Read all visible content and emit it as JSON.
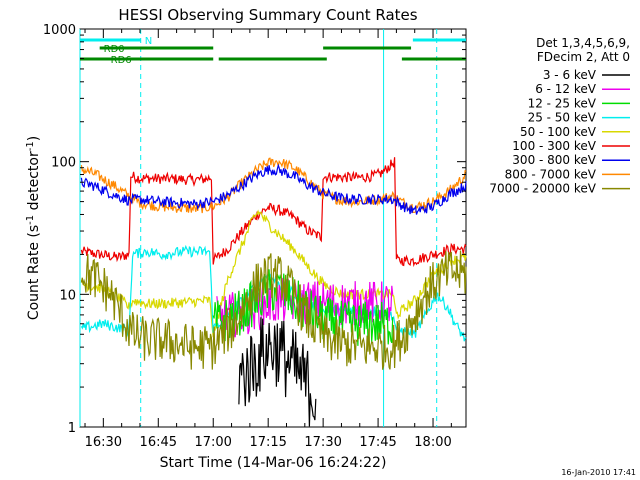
{
  "chart_data": {
    "type": "line",
    "title": "HESSI Observing Summary Count Rates",
    "xlabel": "Start Time (14-Mar-06 16:24:22)",
    "ylabel_main": "Count Rate (s",
    "ylabel_sup1": "-1",
    "ylabel_mid": " detector",
    "ylabel_sup2": "-1",
    "ylabel_end": ")",
    "yscale": "log",
    "ylim": [
      1,
      1000
    ],
    "xlim_minutes": [
      -6.37,
      99.0
    ],
    "x_tick_labels": [
      "16:30",
      "16:45",
      "17:00",
      "17:15",
      "17:30",
      "17:45",
      "18:00"
    ],
    "x_tick_minutes": [
      0,
      15,
      30,
      45,
      60,
      75,
      90
    ],
    "y_tick_labels": [
      "1",
      "10",
      "100",
      "1000"
    ],
    "y_tick_values": [
      1,
      10,
      100,
      1000
    ],
    "legend_header_1": "Det 1,3,4,5,6,9,",
    "legend_header_2": "FDecim 2, Att 0",
    "legend": [
      {
        "name": "3 - 6 keV",
        "color": "#000000"
      },
      {
        "name": "6 - 12 keV",
        "color": "#ee00ee"
      },
      {
        "name": "12 - 25 keV",
        "color": "#00dd00"
      },
      {
        "name": "25 - 50 keV",
        "color": "#00eeee"
      },
      {
        "name": "50 - 100 keV",
        "color": "#d8d800"
      },
      {
        "name": "100 - 300 keV",
        "color": "#ee0000"
      },
      {
        "name": "300 - 800 keV",
        "color": "#0000ee"
      },
      {
        "name": "800 - 7000 keV",
        "color": "#ff8800"
      },
      {
        "name": "7000 - 20000 keV",
        "color": "#888800"
      }
    ],
    "flags": {
      "saa_label": "N",
      "saa_color": "#00eeee",
      "saa_intervals": [
        [
          -6.37,
          10.2
        ],
        [
          84.5,
          99.0
        ]
      ],
      "rd0_label": "RD0",
      "rd0_intervals": [
        [
          -1.0,
          30.0
        ],
        [
          60.0,
          84.0
        ]
      ],
      "rd6_label": "RD6",
      "rd6_intervals": [
        [
          -6.37,
          30.0
        ],
        [
          31.5,
          61.0
        ],
        [
          81.5,
          99.0
        ]
      ],
      "flag_color": "#008800",
      "saa_solid_lines": [
        -6.37,
        76.5
      ],
      "saa_dashed_lines": [
        10.2,
        91.0
      ]
    },
    "series": [
      {
        "name": "100 - 300 keV",
        "color": "#ee0000",
        "points": [
          [
            -6,
            21
          ],
          [
            4,
            19
          ],
          [
            7,
            20
          ],
          [
            7.5,
            78
          ],
          [
            10,
            75
          ],
          [
            20,
            74
          ],
          [
            24,
            73
          ],
          [
            28,
            74
          ],
          [
            29.5,
            76
          ],
          [
            30,
            18
          ],
          [
            34,
            22
          ],
          [
            38,
            30
          ],
          [
            42,
            40
          ],
          [
            45,
            45
          ],
          [
            48,
            43
          ],
          [
            52,
            38
          ],
          [
            56,
            30
          ],
          [
            59.5,
            27
          ],
          [
            60,
            77
          ],
          [
            70,
            76
          ],
          [
            74,
            78
          ],
          [
            76,
            82
          ],
          [
            79.5,
            100
          ],
          [
            80,
            18
          ],
          [
            85,
            18
          ],
          [
            90,
            20
          ],
          [
            95,
            22
          ],
          [
            99,
            22
          ]
        ]
      },
      {
        "name": "800 - 7000 keV",
        "color": "#ff8800",
        "points": [
          [
            -6,
            88
          ],
          [
            -2,
            80
          ],
          [
            3,
            66
          ],
          [
            7,
            55
          ],
          [
            10,
            49
          ],
          [
            15,
            46
          ],
          [
            20,
            45
          ],
          [
            25,
            44
          ],
          [
            30,
            46
          ],
          [
            34,
            54
          ],
          [
            38,
            70
          ],
          [
            42,
            87
          ],
          [
            45,
            98
          ],
          [
            48,
            100
          ],
          [
            52,
            90
          ],
          [
            56,
            72
          ],
          [
            60,
            57
          ],
          [
            65,
            51
          ],
          [
            70,
            50
          ],
          [
            75,
            52
          ],
          [
            79,
            55
          ],
          [
            82,
            49
          ],
          [
            85,
            45
          ],
          [
            90,
            50
          ],
          [
            95,
            62
          ],
          [
            99,
            80
          ]
        ]
      },
      {
        "name": "300 - 800 keV",
        "color": "#0000ee",
        "points": [
          [
            -6,
            70
          ],
          [
            -2,
            65
          ],
          [
            3,
            56
          ],
          [
            7,
            51
          ],
          [
            10,
            52
          ],
          [
            15,
            50
          ],
          [
            20,
            49
          ],
          [
            25,
            48
          ],
          [
            30,
            50
          ],
          [
            34,
            56
          ],
          [
            38,
            67
          ],
          [
            42,
            80
          ],
          [
            45,
            87
          ],
          [
            48,
            86
          ],
          [
            52,
            78
          ],
          [
            56,
            66
          ],
          [
            60,
            58
          ],
          [
            65,
            53
          ],
          [
            70,
            52
          ],
          [
            75,
            52
          ],
          [
            79,
            52
          ],
          [
            82,
            46
          ],
          [
            85,
            42
          ],
          [
            90,
            46
          ],
          [
            95,
            58
          ],
          [
            99,
            66
          ]
        ]
      },
      {
        "name": "50 - 100 keV",
        "color": "#d8d800",
        "points": [
          [
            -6,
            12
          ],
          [
            0,
            11
          ],
          [
            5,
            9
          ],
          [
            7,
            8
          ],
          [
            8,
            9
          ],
          [
            12,
            8.5
          ],
          [
            16,
            8.5
          ],
          [
            22,
            8.7
          ],
          [
            29,
            9
          ],
          [
            30,
            5
          ],
          [
            34,
            13
          ],
          [
            38,
            24
          ],
          [
            41,
            38
          ],
          [
            42.5,
            42
          ],
          [
            45,
            34
          ],
          [
            48,
            28
          ],
          [
            52,
            22
          ],
          [
            56,
            16
          ],
          [
            60,
            12
          ],
          [
            65,
            10
          ],
          [
            70,
            10
          ],
          [
            76,
            10
          ],
          [
            79,
            10
          ],
          [
            80,
            7
          ],
          [
            85,
            9
          ],
          [
            90,
            14
          ],
          [
            95,
            18
          ],
          [
            99,
            19
          ]
        ]
      },
      {
        "name": "25 - 50 keV",
        "color": "#00eeee",
        "points": [
          [
            -6,
            5.5
          ],
          [
            0,
            6
          ],
          [
            5,
            5.5
          ],
          [
            7,
            5.2
          ],
          [
            8,
            20
          ],
          [
            12,
            21
          ],
          [
            16,
            20
          ],
          [
            22,
            21
          ],
          [
            29,
            21
          ],
          [
            30,
            5.5
          ],
          [
            34,
            7
          ],
          [
            38,
            9
          ],
          [
            42,
            12
          ],
          [
            45,
            14
          ],
          [
            48,
            12
          ],
          [
            52,
            10
          ],
          [
            56,
            8.5
          ],
          [
            60,
            7.5
          ],
          [
            65,
            7.5
          ],
          [
            70,
            7.5
          ],
          [
            76,
            7.5
          ],
          [
            79,
            7
          ],
          [
            80,
            5.5
          ],
          [
            85,
            5
          ],
          [
            88,
            7
          ],
          [
            91,
            10
          ],
          [
            94,
            8
          ],
          [
            96,
            6
          ],
          [
            99,
            4.5
          ]
        ]
      },
      {
        "name": "6 - 12 keV",
        "color": "#ee00ee",
        "points": [
          [
            31,
            6.5
          ],
          [
            35,
            7
          ],
          [
            40,
            7.5
          ],
          [
            45,
            8.5
          ],
          [
            50,
            9
          ],
          [
            55,
            8.7
          ],
          [
            60,
            8.6
          ],
          [
            65,
            8.5
          ],
          [
            70,
            8.5
          ],
          [
            75,
            8.5
          ],
          [
            79,
            8.5
          ]
        ]
      },
      {
        "name": "12 - 25 keV",
        "color": "#00dd00",
        "points": [
          [
            30,
            6
          ],
          [
            34,
            6.5
          ],
          [
            38,
            7.5
          ],
          [
            42,
            9
          ],
          [
            45,
            10.5
          ],
          [
            48,
            11
          ],
          [
            52,
            9
          ],
          [
            56,
            7.5
          ],
          [
            60,
            6.5
          ],
          [
            65,
            6
          ],
          [
            70,
            6
          ],
          [
            75,
            6
          ],
          [
            79,
            6
          ]
        ]
      },
      {
        "name": "7000 - 20000 keV",
        "color": "#888800",
        "points": [
          [
            -6,
            15
          ],
          [
            -2,
            13
          ],
          [
            2,
            10
          ],
          [
            5,
            7
          ],
          [
            8,
            5
          ],
          [
            12,
            4.5
          ],
          [
            16,
            4.5
          ],
          [
            20,
            4.3
          ],
          [
            24,
            4
          ],
          [
            28,
            4
          ],
          [
            30,
            4
          ],
          [
            33,
            5
          ],
          [
            36,
            6
          ],
          [
            40,
            10
          ],
          [
            43,
            13
          ],
          [
            46,
            14
          ],
          [
            49,
            13
          ],
          [
            52,
            10
          ],
          [
            55,
            7
          ],
          [
            58,
            5.5
          ],
          [
            61,
            4.6
          ],
          [
            65,
            4.2
          ],
          [
            70,
            4
          ],
          [
            75,
            4
          ],
          [
            79,
            4
          ],
          [
            82,
            5
          ],
          [
            85,
            7
          ],
          [
            88,
            10
          ],
          [
            91,
            13
          ],
          [
            95,
            15
          ],
          [
            99,
            14
          ]
        ]
      },
      {
        "name": "3 - 6 keV",
        "color": "#000000",
        "points": [
          [
            37,
            2.3
          ],
          [
            40,
            2.8
          ],
          [
            42,
            3.2
          ],
          [
            44,
            3.8
          ],
          [
            46,
            4.2
          ],
          [
            48,
            3.8
          ],
          [
            50,
            3.2
          ],
          [
            52,
            2.8
          ],
          [
            55,
            2.2
          ],
          [
            58,
            1.7
          ]
        ]
      }
    ]
  },
  "footer_date": "16-Jan-2010 17:41"
}
